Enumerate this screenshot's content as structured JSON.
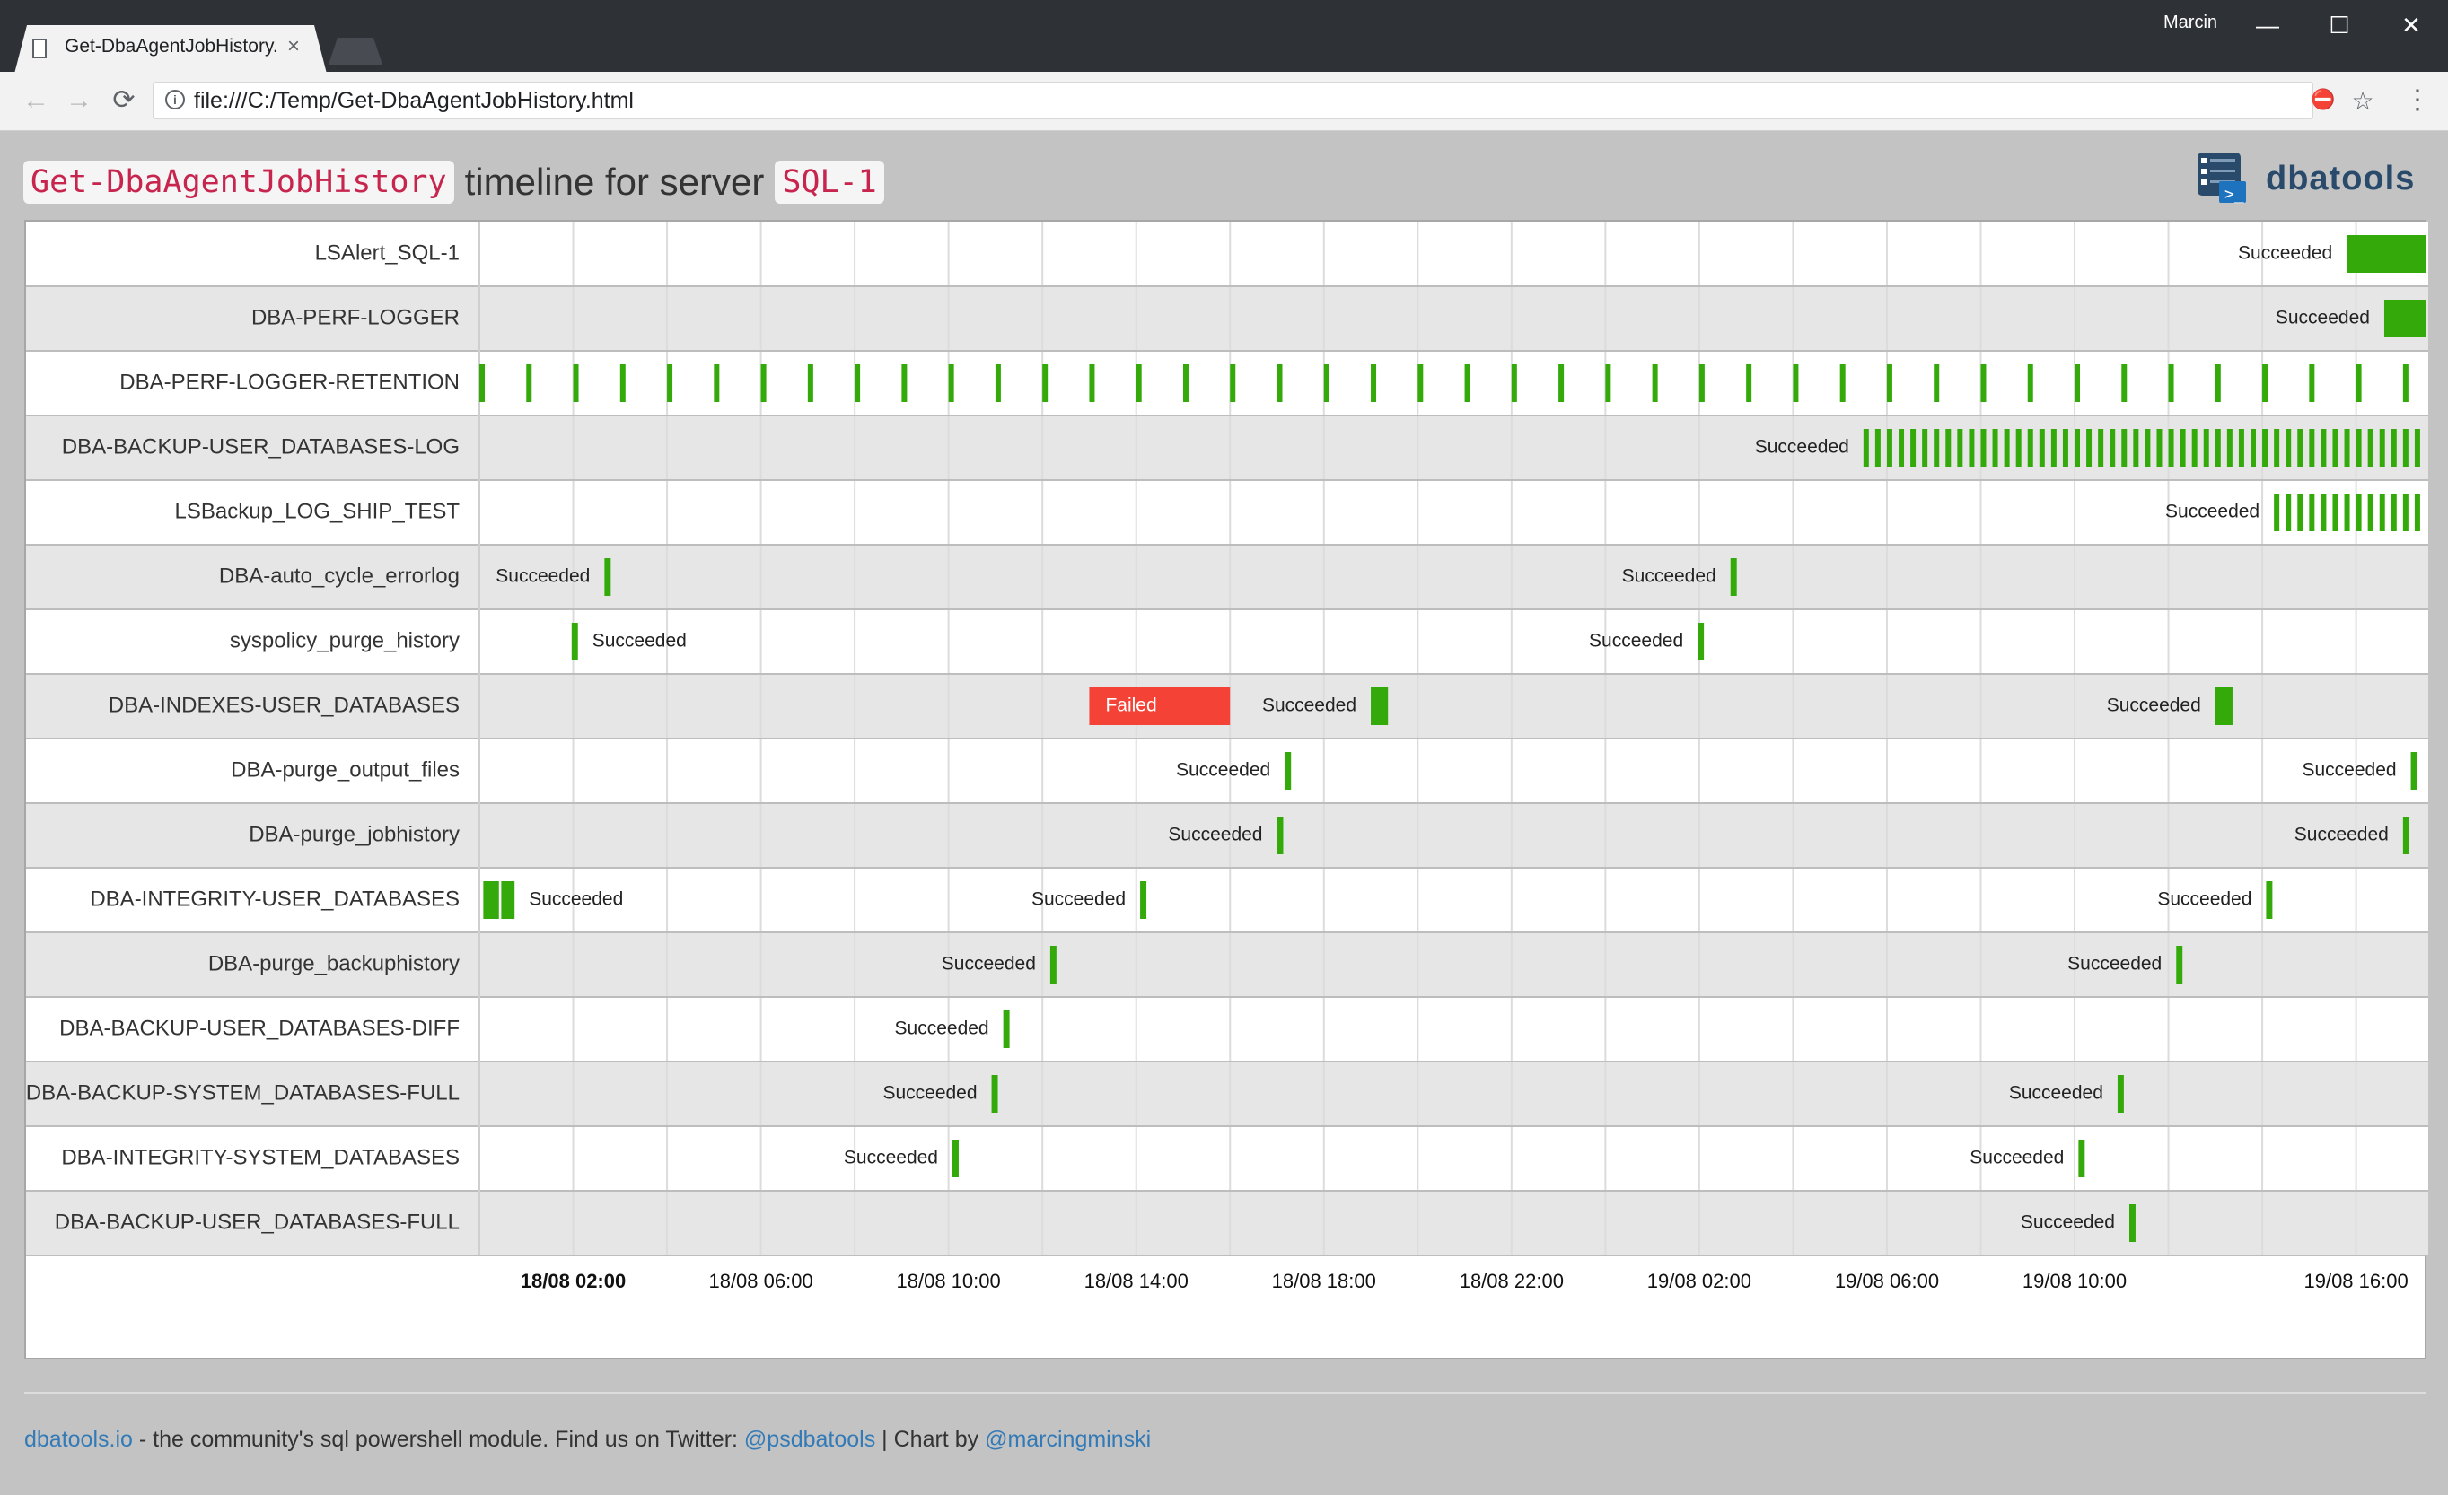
{
  "browser": {
    "tab_title": "Get-DbaAgentJobHistory.html",
    "tab_close": "×",
    "user_name": "Marcin",
    "url": "file:///C:/Temp/Get-DbaAgentJobHistory.html",
    "back": "←",
    "forward": "→",
    "reload": "⟳",
    "info": "i",
    "star": "☆",
    "menu": "⋮",
    "ext": "⛔",
    "minimize": "—",
    "maximize": "☐",
    "close": "✕"
  },
  "heading": {
    "cmd": "Get-DbaAgentJobHistory",
    "text": "timeline for server",
    "server": "SQL-1"
  },
  "logo": {
    "text": "dbatools"
  },
  "footer": {
    "link_site": "dbatools.io",
    "text1": " - the community's sql powershell module. Find us on Twitter: ",
    "link_twitter": "@psdbatools",
    "text2": " | Chart by ",
    "link_author": "@marcingminski"
  },
  "chart_data": {
    "type": "timeline",
    "x_range": [
      "18/08 00:00",
      "19/08 17:30"
    ],
    "x_ticks": [
      {
        "label": "18/08 02:00",
        "bold": true
      },
      {
        "label": "18/08 06:00"
      },
      {
        "label": "18/08 10:00"
      },
      {
        "label": "18/08 14:00"
      },
      {
        "label": "18/08 18:00"
      },
      {
        "label": "18/08 22:00"
      },
      {
        "label": "19/08 02:00"
      },
      {
        "label": "19/08 06:00"
      },
      {
        "label": "19/08 10:00"
      },
      {
        "label": "19/08 16:00"
      }
    ],
    "colors": {
      "succeeded": "#33aa0a",
      "failed": "#f44336",
      "row_alt": "#e6e6e6",
      "grid": "#dcdcdc"
    },
    "rows": [
      {
        "job": "LSAlert_SQL-1",
        "bars": [
          {
            "start": "19/08 15:58",
            "end": "19/08 17:40",
            "status": "Succeeded",
            "label": "Succeeded"
          }
        ]
      },
      {
        "job": "DBA-PERF-LOGGER",
        "bars": [
          {
            "start": "19/08 16:46",
            "end": "19/08 17:40",
            "status": "Succeeded",
            "label": "Succeeded"
          }
        ]
      },
      {
        "job": "DBA-PERF-LOGGER-RETENTION",
        "repeat": {
          "start": "18/08 00:00",
          "every_minutes": 60,
          "count": 42,
          "width_minutes": 5,
          "status": "Succeeded"
        }
      },
      {
        "job": "DBA-BACKUP-USER_DATABASES-LOG",
        "repeat": {
          "start": "19/08 05:30",
          "every_minutes": 15,
          "count": 48,
          "width_minutes": 5,
          "status": "Succeeded",
          "label": "Succeeded"
        }
      },
      {
        "job": "LSBackup_LOG_SHIP_TEST",
        "repeat": {
          "start": "19/08 14:15",
          "every_minutes": 15,
          "count": 13,
          "width_minutes": 5,
          "status": "Succeeded",
          "label": "Succeeded"
        }
      },
      {
        "job": "DBA-auto_cycle_errorlog",
        "bars": [
          {
            "start": "18/08 02:40",
            "end": "18/08 02:48",
            "status": "Succeeded",
            "label": "Succeeded"
          },
          {
            "start": "19/08 02:40",
            "end": "19/08 02:48",
            "status": "Succeeded",
            "label": "Succeeded"
          }
        ]
      },
      {
        "job": "syspolicy_purge_history",
        "bars": [
          {
            "start": "18/08 01:58",
            "end": "18/08 02:06",
            "status": "Succeeded",
            "label": "Succeeded",
            "label_side": "right"
          },
          {
            "start": "19/08 01:58",
            "end": "19/08 02:06",
            "status": "Succeeded",
            "label": "Succeeded"
          }
        ]
      },
      {
        "job": "DBA-INDEXES-USER_DATABASES",
        "bars": [
          {
            "start": "18/08 13:00",
            "end": "18/08 16:00",
            "status": "Failed",
            "label": "Failed",
            "label_side": "inside"
          },
          {
            "start": "18/08 19:00",
            "end": "18/08 19:22",
            "status": "Succeeded",
            "label": "Succeeded"
          },
          {
            "start": "19/08 13:00",
            "end": "19/08 13:22",
            "status": "Succeeded",
            "label": "Succeeded"
          }
        ]
      },
      {
        "job": "DBA-purge_output_files",
        "bars": [
          {
            "start": "18/08 17:10",
            "end": "18/08 17:18",
            "status": "Succeeded",
            "label": "Succeeded"
          },
          {
            "start": "19/08 17:10",
            "end": "19/08 17:18",
            "status": "Succeeded",
            "label": "Succeeded"
          }
        ]
      },
      {
        "job": "DBA-purge_jobhistory",
        "bars": [
          {
            "start": "18/08 17:00",
            "end": "18/08 17:08",
            "status": "Succeeded",
            "label": "Succeeded"
          },
          {
            "start": "19/08 17:00",
            "end": "19/08 17:08",
            "status": "Succeeded",
            "label": "Succeeded"
          }
        ]
      },
      {
        "job": "DBA-INTEGRITY-USER_DATABASES",
        "bars": [
          {
            "start": "18/08 00:05",
            "end": "18/08 00:25",
            "status": "Succeeded"
          },
          {
            "start": "18/08 00:28",
            "end": "18/08 00:45",
            "status": "Succeeded",
            "label": "Succeeded",
            "label_side": "right"
          },
          {
            "start": "18/08 14:05",
            "end": "18/08 14:13",
            "status": "Succeeded",
            "label": "Succeeded"
          },
          {
            "start": "19/08 14:05",
            "end": "19/08 14:13",
            "status": "Succeeded",
            "label": "Succeeded"
          }
        ]
      },
      {
        "job": "DBA-purge_backuphistory",
        "bars": [
          {
            "start": "18/08 12:10",
            "end": "18/08 12:18",
            "status": "Succeeded",
            "label": "Succeeded"
          },
          {
            "start": "19/08 12:10",
            "end": "19/08 12:18",
            "status": "Succeeded",
            "label": "Succeeded"
          }
        ]
      },
      {
        "job": "DBA-BACKUP-USER_DATABASES-DIFF",
        "bars": [
          {
            "start": "18/08 11:10",
            "end": "18/08 11:18",
            "status": "Succeeded",
            "label": "Succeeded"
          }
        ]
      },
      {
        "job": "DBA-BACKUP-SYSTEM_DATABASES-FULL",
        "bars": [
          {
            "start": "18/08 10:55",
            "end": "18/08 11:03",
            "status": "Succeeded",
            "label": "Succeeded"
          },
          {
            "start": "19/08 10:55",
            "end": "19/08 11:03",
            "status": "Succeeded",
            "label": "Succeeded"
          }
        ]
      },
      {
        "job": "DBA-INTEGRITY-SYSTEM_DATABASES",
        "bars": [
          {
            "start": "18/08 10:05",
            "end": "18/08 10:13",
            "status": "Succeeded",
            "label": "Succeeded"
          },
          {
            "start": "19/08 10:05",
            "end": "19/08 10:13",
            "status": "Succeeded",
            "label": "Succeeded"
          }
        ]
      },
      {
        "job": "DBA-BACKUP-USER_DATABASES-FULL",
        "bars": [
          {
            "start": "19/08 11:10",
            "end": "19/08 11:18",
            "status": "Succeeded",
            "label": "Succeeded"
          }
        ]
      }
    ]
  }
}
